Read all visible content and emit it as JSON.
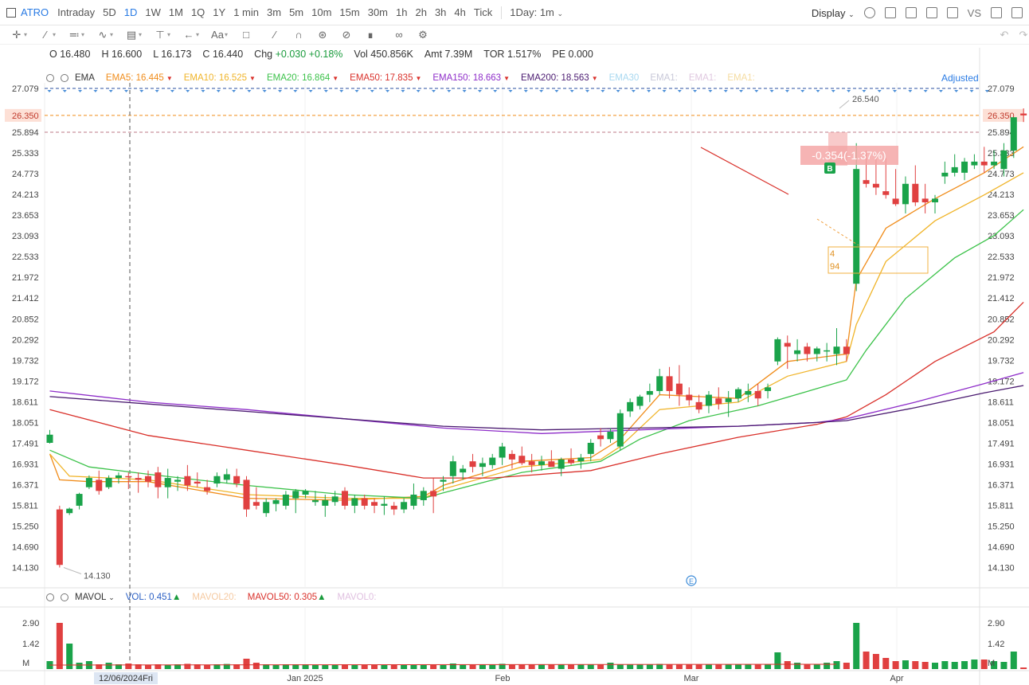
{
  "toolbar": {
    "symbol": "ATRO",
    "intervals": [
      "Intraday",
      "5D",
      "1D",
      "1W",
      "1M",
      "1Q",
      "1Y",
      "1 min",
      "3m",
      "5m",
      "10m",
      "15m",
      "30m",
      "1h",
      "2h",
      "3h",
      "4h",
      "Tick"
    ],
    "active_interval": "1D",
    "period_select": "1Day: 1m",
    "display_label": "Display",
    "vs_label": "VS"
  },
  "drawing_tools": {
    "text_tool": "Aa"
  },
  "quote": {
    "open_label": "O",
    "open": "16.480",
    "high_label": "H",
    "high": "16.600",
    "low_label": "L",
    "low": "16.173",
    "close_label": "C",
    "close": "16.440",
    "chg_label": "Chg",
    "chg": "+0.030",
    "chg_pct": "+0.18%",
    "vol_label": "Vol",
    "vol": "450.856K",
    "amt_label": "Amt",
    "amt": "7.39M",
    "tor_label": "TOR",
    "tor": "1.517%",
    "pe_label": "PE",
    "pe": "0.000"
  },
  "indicator_legend": {
    "name": "EMA",
    "adjusted_label": "Adjusted",
    "items": [
      {
        "label": "EMA5:",
        "value": "16.445",
        "color": "#f08c1a"
      },
      {
        "label": "EMA10:",
        "value": "16.525",
        "color": "#f0b429"
      },
      {
        "label": "EMA20:",
        "value": "16.864",
        "color": "#3cc24a"
      },
      {
        "label": "EMA50:",
        "value": "17.835",
        "color": "#d9302a"
      },
      {
        "label": "EMA150:",
        "value": "18.663",
        "color": "#8e2dc9"
      },
      {
        "label": "EMA200:",
        "value": "18.563",
        "color": "#4a1a70"
      },
      {
        "label": "EMA30",
        "value": "",
        "color": "#a8d8f0"
      },
      {
        "label": "EMA1:",
        "value": "",
        "color": "#c8c8d8"
      },
      {
        "label": "EMA1:",
        "value": "",
        "color": "#e0c8e0"
      },
      {
        "label": "EMA1:",
        "value": "",
        "color": "#f5dca0"
      }
    ]
  },
  "volume_legend": {
    "name": "MAVOL",
    "items": [
      {
        "label": "VOL:",
        "value": "0.451",
        "color": "#2a5fc4",
        "tri": "▲",
        "tri_color": "#1a9b3c"
      },
      {
        "label": "MAVOL20:",
        "value": "",
        "color": "#f5c9a0",
        "tri": "",
        "tri_color": ""
      },
      {
        "label": "MAVOL50:",
        "value": "0.305",
        "color": "#d9302a",
        "tri": "▲",
        "tri_color": "#1a9b3c"
      },
      {
        "label": "MAVOL0:",
        "value": "",
        "color": "#e0c0e0",
        "tri": "",
        "tri_color": ""
      }
    ]
  },
  "chart_data": {
    "type": "candlestick",
    "price_axis_ticks": [
      "27.079",
      "26.350",
      "25.894",
      "25.333",
      "24.773",
      "24.213",
      "23.653",
      "23.093",
      "22.533",
      "21.972",
      "21.412",
      "20.852",
      "20.292",
      "19.732",
      "19.172",
      "18.611",
      "18.051",
      "17.491",
      "16.931",
      "16.371",
      "15.811",
      "15.250",
      "14.690",
      "14.130"
    ],
    "ylim": [
      14.13,
      27.079
    ],
    "volume_axis_ticks": [
      "2.90",
      "1.42",
      "M"
    ],
    "x_labels": [
      "Jan 2025",
      "Feb",
      "Mar",
      "Apr"
    ],
    "crosshair_date": "12/06/2024Fri",
    "current_price": "26.350",
    "high_marker": "26.540",
    "low_marker": "14.130",
    "measure_label": "-0.354(-1.37%)",
    "note_box": [
      "4",
      "94"
    ],
    "buy_marker": "B",
    "event_marker": "E",
    "candles": [
      [
        17.5,
        17.85,
        17.48,
        17.72
      ],
      [
        15.7,
        15.8,
        14.13,
        14.2
      ],
      [
        15.6,
        15.75,
        15.55,
        15.72
      ],
      [
        15.8,
        16.15,
        15.7,
        16.12
      ],
      [
        16.3,
        16.62,
        16.25,
        16.55
      ],
      [
        16.5,
        16.75,
        16.1,
        16.2
      ],
      [
        16.3,
        16.62,
        16.25,
        16.55
      ],
      [
        16.55,
        16.7,
        16.4,
        16.62
      ],
      [
        16.6,
        16.7,
        16.25,
        16.58
      ],
      [
        16.55,
        16.7,
        16.15,
        16.5
      ],
      [
        16.6,
        16.75,
        16.3,
        16.45
      ],
      [
        16.7,
        16.85,
        16.0,
        16.3
      ],
      [
        16.3,
        16.8,
        16.0,
        16.55
      ],
      [
        16.45,
        16.6,
        16.2,
        16.5
      ],
      [
        16.6,
        16.9,
        16.2,
        16.35
      ],
      [
        16.45,
        16.7,
        16.3,
        16.4
      ],
      [
        16.3,
        16.5,
        16.1,
        16.2
      ],
      [
        16.4,
        16.7,
        16.3,
        16.6
      ],
      [
        16.5,
        16.8,
        16.4,
        16.65
      ],
      [
        16.6,
        16.8,
        16.3,
        16.4
      ],
      [
        16.5,
        16.6,
        15.5,
        15.7
      ],
      [
        15.9,
        16.3,
        15.7,
        15.8
      ],
      [
        15.6,
        16.0,
        15.5,
        15.9
      ],
      [
        15.85,
        16.0,
        15.65,
        15.95
      ],
      [
        15.8,
        16.2,
        15.7,
        16.1
      ],
      [
        16.0,
        16.25,
        15.6,
        16.2
      ],
      [
        16.1,
        16.25,
        16.0,
        16.2
      ],
      [
        15.9,
        16.2,
        15.8,
        15.95
      ],
      [
        15.8,
        16.1,
        15.5,
        15.95
      ],
      [
        15.9,
        16.2,
        15.8,
        16.05
      ],
      [
        16.2,
        16.3,
        15.7,
        15.8
      ],
      [
        15.8,
        16.1,
        15.6,
        16.0
      ],
      [
        16.0,
        16.1,
        15.7,
        15.8
      ],
      [
        15.9,
        16.0,
        15.6,
        15.8
      ],
      [
        15.8,
        16.05,
        15.55,
        15.85
      ],
      [
        15.8,
        15.9,
        15.55,
        15.7
      ],
      [
        15.7,
        16.0,
        15.6,
        15.9
      ],
      [
        15.8,
        16.4,
        15.7,
        16.1
      ],
      [
        15.95,
        16.3,
        15.8,
        16.2
      ],
      [
        16.2,
        16.55,
        15.6,
        16.05
      ],
      [
        16.45,
        16.6,
        16.2,
        16.5
      ],
      [
        16.6,
        17.15,
        16.4,
        17.0
      ],
      [
        16.7,
        16.9,
        16.5,
        16.8
      ],
      [
        17.0,
        17.2,
        16.7,
        16.85
      ],
      [
        16.85,
        17.1,
        16.6,
        16.95
      ],
      [
        16.9,
        17.2,
        16.8,
        17.1
      ],
      [
        17.1,
        17.5,
        16.9,
        17.4
      ],
      [
        17.2,
        17.3,
        16.8,
        17.05
      ],
      [
        17.15,
        17.4,
        16.9,
        16.95
      ],
      [
        17.0,
        17.2,
        16.7,
        16.9
      ],
      [
        16.9,
        17.15,
        16.75,
        17.0
      ],
      [
        17.0,
        17.3,
        16.9,
        16.85
      ],
      [
        16.8,
        17.1,
        16.6,
        17.05
      ],
      [
        17.05,
        17.35,
        16.9,
        16.95
      ],
      [
        17.0,
        17.2,
        16.8,
        17.1
      ],
      [
        17.2,
        17.6,
        17.0,
        17.5
      ],
      [
        17.7,
        17.9,
        17.4,
        17.6
      ],
      [
        17.6,
        17.9,
        17.5,
        17.8
      ],
      [
        17.4,
        18.4,
        17.3,
        18.3
      ],
      [
        18.35,
        18.7,
        18.2,
        18.6
      ],
      [
        18.5,
        18.8,
        18.4,
        18.75
      ],
      [
        18.8,
        19.1,
        18.6,
        18.9
      ],
      [
        18.9,
        19.5,
        18.8,
        19.3
      ],
      [
        19.3,
        19.55,
        18.7,
        18.9
      ],
      [
        19.1,
        19.6,
        18.5,
        18.8
      ],
      [
        18.8,
        19.0,
        18.5,
        18.65
      ],
      [
        18.6,
        18.8,
        18.3,
        18.4
      ],
      [
        18.5,
        18.9,
        18.3,
        18.8
      ],
      [
        18.7,
        19.0,
        18.4,
        18.55
      ],
      [
        18.6,
        18.9,
        18.2,
        18.7
      ],
      [
        18.7,
        19.0,
        18.6,
        18.95
      ],
      [
        18.8,
        19.1,
        18.6,
        18.9
      ],
      [
        18.9,
        19.1,
        18.5,
        18.7
      ],
      [
        18.9,
        19.1,
        18.7,
        19.0
      ],
      [
        19.7,
        20.35,
        19.6,
        20.3
      ],
      [
        20.2,
        20.4,
        19.5,
        20.1
      ],
      [
        19.9,
        20.3,
        19.7,
        20.0
      ],
      [
        20.1,
        20.2,
        19.7,
        19.9
      ],
      [
        19.9,
        20.1,
        19.7,
        20.05
      ],
      [
        20.0,
        20.2,
        19.7,
        20.0
      ],
      [
        19.9,
        20.6,
        19.6,
        20.1
      ],
      [
        20.1,
        20.3,
        19.7,
        19.9
      ],
      [
        21.8,
        25.6,
        21.6,
        24.9
      ],
      [
        24.6,
        25.4,
        24.4,
        24.5
      ],
      [
        24.5,
        25.3,
        24.2,
        24.4
      ],
      [
        24.3,
        25.2,
        24.1,
        24.2
      ],
      [
        24.1,
        24.9,
        23.9,
        23.95
      ],
      [
        23.95,
        24.7,
        23.7,
        24.5
      ],
      [
        24.5,
        25.0,
        23.9,
        24.0
      ],
      [
        24.1,
        24.5,
        23.7,
        24.0
      ],
      [
        24.0,
        24.2,
        23.7,
        24.1
      ],
      [
        24.7,
        25.1,
        24.5,
        24.8
      ],
      [
        24.8,
        25.3,
        24.7,
        24.95
      ],
      [
        24.8,
        25.2,
        24.6,
        25.1
      ],
      [
        25.0,
        25.3,
        24.9,
        25.1
      ],
      [
        25.1,
        25.5,
        24.8,
        25.0
      ],
      [
        25.0,
        25.4,
        24.9,
        25.1
      ],
      [
        24.9,
        25.6,
        24.7,
        25.4
      ],
      [
        25.4,
        26.2,
        25.2,
        26.3
      ],
      [
        26.4,
        26.54,
        26.17,
        26.35
      ]
    ],
    "volumes": [
      0.5,
      2.9,
      1.6,
      0.4,
      0.5,
      0.3,
      0.4,
      0.3,
      0.35,
      0.3,
      0.28,
      0.3,
      0.28,
      0.3,
      0.33,
      0.3,
      0.28,
      0.3,
      0.32,
      0.3,
      0.65,
      0.4,
      0.3,
      0.28,
      0.3,
      0.3,
      0.3,
      0.28,
      0.25,
      0.28,
      0.3,
      0.28,
      0.25,
      0.27,
      0.25,
      0.26,
      0.28,
      0.3,
      0.28,
      0.3,
      0.25,
      0.35,
      0.3,
      0.28,
      0.3,
      0.3,
      0.33,
      0.3,
      0.28,
      0.3,
      0.28,
      0.3,
      0.28,
      0.3,
      0.28,
      0.3,
      0.28,
      0.4,
      0.3,
      0.28,
      0.3,
      0.3,
      0.32,
      0.3,
      0.28,
      0.3,
      0.28,
      0.3,
      0.28,
      0.3,
      0.28,
      0.3,
      0.28,
      0.3,
      1.05,
      0.5,
      0.4,
      0.3,
      0.28,
      0.4,
      0.5,
      0.4,
      2.9,
      1.1,
      0.95,
      0.7,
      0.5,
      0.55,
      0.5,
      0.45,
      0.4,
      0.5,
      0.45,
      0.5,
      0.6,
      0.6,
      0.5,
      0.45,
      1.1,
      0.1
    ],
    "ema": [
      {
        "label": "EMA5",
        "color": "#f08c1a",
        "points": [
          [
            0,
            17.2
          ],
          [
            1,
            16.5
          ],
          [
            4,
            16.45
          ],
          [
            10,
            16.45
          ],
          [
            20,
            16.0
          ],
          [
            30,
            15.95
          ],
          [
            38,
            16.05
          ],
          [
            40,
            16.35
          ],
          [
            48,
            17.0
          ],
          [
            55,
            17.1
          ],
          [
            58,
            17.6
          ],
          [
            62,
            18.8
          ],
          [
            70,
            18.7
          ],
          [
            75,
            19.7
          ],
          [
            81,
            19.9
          ],
          [
            82,
            21.9
          ],
          [
            85,
            23.3
          ],
          [
            90,
            24.1
          ],
          [
            95,
            24.8
          ],
          [
            99,
            25.5
          ]
        ]
      },
      {
        "label": "EMA10",
        "color": "#f0b429",
        "points": [
          [
            0,
            17.2
          ],
          [
            2,
            16.6
          ],
          [
            10,
            16.5
          ],
          [
            20,
            16.1
          ],
          [
            30,
            16.0
          ],
          [
            38,
            16.0
          ],
          [
            40,
            16.25
          ],
          [
            48,
            16.85
          ],
          [
            56,
            17.05
          ],
          [
            58,
            17.4
          ],
          [
            62,
            18.4
          ],
          [
            70,
            18.6
          ],
          [
            75,
            19.3
          ],
          [
            81,
            19.7
          ],
          [
            82,
            20.7
          ],
          [
            85,
            22.4
          ],
          [
            90,
            23.5
          ],
          [
            95,
            24.2
          ],
          [
            99,
            24.8
          ]
        ]
      },
      {
        "label": "EMA20",
        "color": "#3cc24a",
        "points": [
          [
            0,
            17.3
          ],
          [
            4,
            16.85
          ],
          [
            10,
            16.65
          ],
          [
            20,
            16.35
          ],
          [
            30,
            16.1
          ],
          [
            38,
            16.0
          ],
          [
            40,
            16.15
          ],
          [
            48,
            16.7
          ],
          [
            56,
            17.0
          ],
          [
            60,
            17.6
          ],
          [
            65,
            18.1
          ],
          [
            72,
            18.5
          ],
          [
            81,
            19.2
          ],
          [
            83,
            20.0
          ],
          [
            87,
            21.4
          ],
          [
            92,
            22.5
          ],
          [
            96,
            23.1
          ],
          [
            99,
            23.8
          ]
        ]
      },
      {
        "label": "EMA50",
        "color": "#d9302a",
        "points": [
          [
            0,
            18.4
          ],
          [
            10,
            17.7
          ],
          [
            20,
            17.3
          ],
          [
            30,
            16.9
          ],
          [
            38,
            16.55
          ],
          [
            45,
            16.55
          ],
          [
            55,
            16.75
          ],
          [
            62,
            17.2
          ],
          [
            70,
            17.65
          ],
          [
            78,
            18.0
          ],
          [
            81,
            18.2
          ],
          [
            85,
            18.8
          ],
          [
            90,
            19.7
          ],
          [
            96,
            20.5
          ],
          [
            99,
            21.3
          ]
        ]
      },
      {
        "label": "EMA150",
        "color": "#8e2dc9",
        "points": [
          [
            0,
            18.9
          ],
          [
            10,
            18.6
          ],
          [
            20,
            18.4
          ],
          [
            30,
            18.15
          ],
          [
            40,
            17.9
          ],
          [
            50,
            17.75
          ],
          [
            60,
            17.85
          ],
          [
            70,
            17.95
          ],
          [
            78,
            18.05
          ],
          [
            81,
            18.15
          ],
          [
            88,
            18.6
          ],
          [
            95,
            19.1
          ],
          [
            99,
            19.4
          ]
        ]
      },
      {
        "label": "EMA200",
        "color": "#4a1a70",
        "points": [
          [
            0,
            18.75
          ],
          [
            10,
            18.55
          ],
          [
            20,
            18.35
          ],
          [
            30,
            18.15
          ],
          [
            40,
            17.95
          ],
          [
            50,
            17.85
          ],
          [
            60,
            17.9
          ],
          [
            70,
            17.95
          ],
          [
            78,
            18.05
          ],
          [
            81,
            18.1
          ],
          [
            88,
            18.45
          ],
          [
            95,
            18.85
          ],
          [
            99,
            19.05
          ]
        ]
      }
    ]
  }
}
